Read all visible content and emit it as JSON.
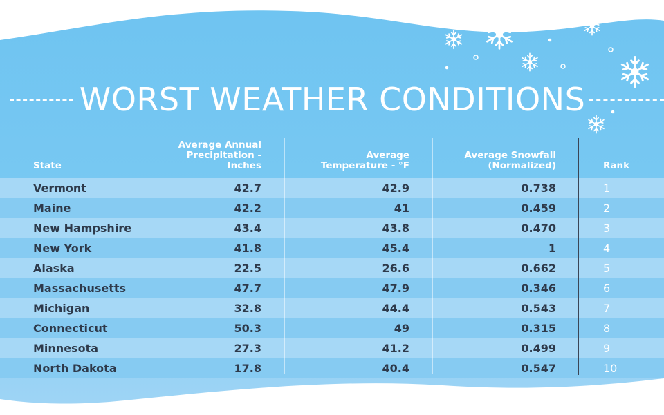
{
  "title": "WORST WEATHER CONDITIONS",
  "colors": {
    "band_top": "#6fc4f1",
    "band_bottom": "#8fcff4",
    "row_light": "#a6d8f6",
    "row_dark": "#86cbf2",
    "text_dark": "#2e3a4b",
    "text_white": "#ffffff"
  },
  "decorations": [
    "snowflake-icon",
    "snowflake-icon",
    "snowflake-icon",
    "snowflake-icon",
    "snowflake-icon"
  ],
  "chart_data": {
    "type": "table",
    "columns": [
      "State",
      "Average Annual Precipitation - Inches",
      "Average Temperature - °F",
      "Average Snowfall (Normalized)",
      "Rank"
    ],
    "header_lines": [
      [
        "State"
      ],
      [
        "Average Annual",
        "Precipitation -",
        "Inches"
      ],
      [
        "Average",
        "Temperature - °F"
      ],
      [
        "Average Snowfall",
        "(Normalized)"
      ],
      [
        "Rank"
      ]
    ],
    "rows": [
      {
        "state": "Vermont",
        "precipitation": "42.7",
        "temperature": "42.9",
        "snowfall": "0.738",
        "rank": "1"
      },
      {
        "state": "Maine",
        "precipitation": "42.2",
        "temperature": "41",
        "snowfall": "0.459",
        "rank": "2"
      },
      {
        "state": "New Hampshire",
        "precipitation": "43.4",
        "temperature": "43.8",
        "snowfall": "0.470",
        "rank": "3"
      },
      {
        "state": "New York",
        "precipitation": "41.8",
        "temperature": "45.4",
        "snowfall": "1",
        "rank": "4"
      },
      {
        "state": "Alaska",
        "precipitation": "22.5",
        "temperature": "26.6",
        "snowfall": "0.662",
        "rank": "5"
      },
      {
        "state": "Massachusetts",
        "precipitation": "47.7",
        "temperature": "47.9",
        "snowfall": "0.346",
        "rank": "6"
      },
      {
        "state": "Michigan",
        "precipitation": "32.8",
        "temperature": "44.4",
        "snowfall": "0.543",
        "rank": "7"
      },
      {
        "state": "Connecticut",
        "precipitation": "50.3",
        "temperature": "49",
        "snowfall": "0.315",
        "rank": "8"
      },
      {
        "state": "Minnesota",
        "precipitation": "27.3",
        "temperature": "41.2",
        "snowfall": "0.499",
        "rank": "9"
      },
      {
        "state": "North Dakota",
        "precipitation": "17.8",
        "temperature": "40.4",
        "snowfall": "0.547",
        "rank": "10"
      }
    ]
  }
}
